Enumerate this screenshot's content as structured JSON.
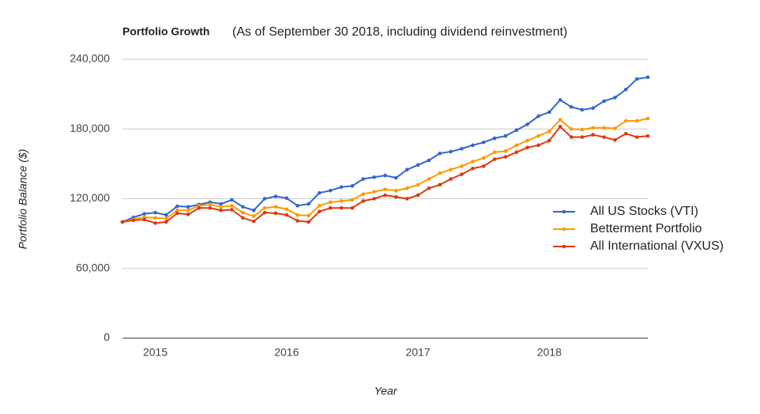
{
  "chart_data": {
    "type": "line",
    "title": "Portfolio Growth",
    "subtitle": "(As of September 30 2018, including dividend reinvestment)",
    "x_label": "Year",
    "y_label": "Portfolio Balance ($)",
    "x": [
      2014.75,
      2014.833,
      2014.917,
      2015,
      2015.083,
      2015.167,
      2015.25,
      2015.333,
      2015.417,
      2015.5,
      2015.583,
      2015.667,
      2015.75,
      2015.833,
      2015.917,
      2016,
      2016.083,
      2016.167,
      2016.25,
      2016.333,
      2016.417,
      2016.5,
      2016.583,
      2016.667,
      2016.75,
      2016.833,
      2016.917,
      2017,
      2017.083,
      2017.167,
      2017.25,
      2017.333,
      2017.417,
      2017.5,
      2017.583,
      2017.667,
      2017.75,
      2017.833,
      2017.917,
      2018,
      2018.083,
      2018.167,
      2018.25,
      2018.333,
      2018.417,
      2018.5,
      2018.583,
      2018.667,
      2018.75
    ],
    "series": [
      {
        "name": "All US Stocks (VTI)",
        "color": "#3366cc",
        "values": [
          100000,
          104000,
          107000,
          108000,
          106000,
          113500,
          113000,
          115000,
          117000,
          115500,
          119000,
          113000,
          110000,
          120000,
          122000,
          120500,
          114000,
          115500,
          125000,
          127000,
          130000,
          131000,
          137000,
          138500,
          140000,
          138000,
          145000,
          149000,
          153000,
          159000,
          160500,
          163000,
          166000,
          168500,
          172000,
          174000,
          179000,
          184000,
          191000,
          194500,
          205000,
          199000,
          196500,
          198000,
          204000,
          207000,
          214000,
          223000,
          224500
        ]
      },
      {
        "name": "Betterment Portfolio",
        "color": "#ff9900",
        "values": [
          100000,
          102500,
          104000,
          103500,
          103000,
          110000,
          110000,
          114000,
          115000,
          113000,
          114000,
          108000,
          105000,
          112000,
          113000,
          111000,
          106000,
          105500,
          114000,
          117000,
          118000,
          119000,
          124000,
          126000,
          128000,
          127000,
          129000,
          132000,
          137000,
          142000,
          145000,
          148000,
          152000,
          155000,
          160000,
          161000,
          166000,
          170000,
          174000,
          178000,
          188000,
          180000,
          179500,
          181000,
          181000,
          180500,
          187000,
          187000,
          189000
        ]
      },
      {
        "name": "All International (VXUS)",
        "color": "#dc3912",
        "values": [
          100000,
          101500,
          102000,
          99000,
          100000,
          107500,
          106500,
          112000,
          112000,
          110000,
          110500,
          103500,
          100500,
          108000,
          107500,
          106000,
          101000,
          100000,
          109000,
          112000,
          112000,
          112000,
          118000,
          120000,
          123000,
          121500,
          120000,
          123000,
          129000,
          132000,
          137000,
          141000,
          146000,
          148000,
          154000,
          156000,
          160000,
          164000,
          166000,
          170000,
          182000,
          173000,
          173000,
          175000,
          173000,
          170500,
          176000,
          173000,
          174000
        ]
      }
    ],
    "xlim": [
      2014.75,
      2018.75
    ],
    "xticks": [
      2015,
      2016,
      2017,
      2018
    ],
    "ylim": [
      0,
      240000
    ],
    "yticks": [
      0,
      {
        "value": 60000,
        "label": "60,000"
      },
      {
        "value": 120000,
        "label": "120,000"
      },
      {
        "value": 180000,
        "label": "180,000"
      },
      {
        "value": 240000,
        "label": "240,000"
      }
    ],
    "grid": true,
    "legend": "right"
  }
}
